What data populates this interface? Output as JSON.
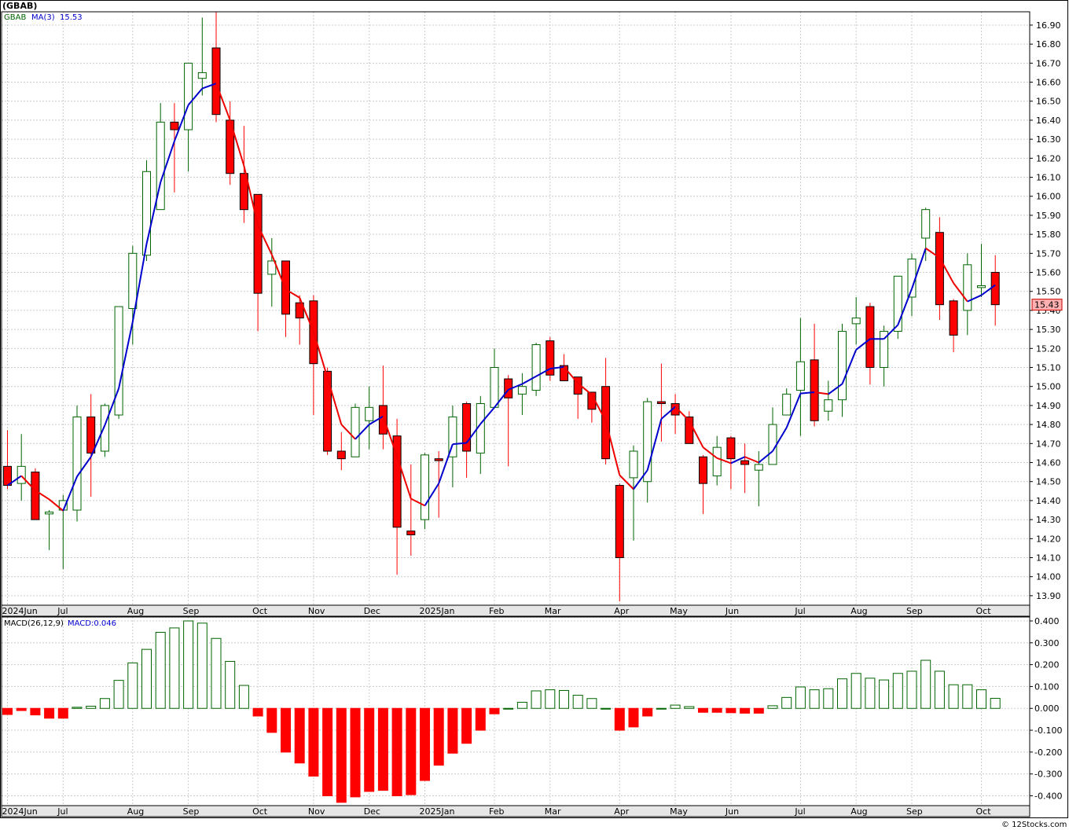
{
  "title": "(GBAB)",
  "watermark": "© 12Stocks.com",
  "price_legend": {
    "symbol": "GBAB",
    "ma_label": "MA(3)",
    "ma_value": "15.53"
  },
  "macd_legend": {
    "label": "MACD(26,12,9)",
    "value_label": "MACD:0.046"
  },
  "last_price_label": "15.43",
  "colors": {
    "up": "#006400",
    "down": "#ff0000",
    "ma_up": "#0000cc",
    "ma_down": "#ee0000",
    "grid": "#cccccc",
    "axis_strip": "#e6e6e6",
    "last_price_bg": "#ffb0b0"
  },
  "chart_data": [
    {
      "type": "candlestick",
      "title": "(GBAB)",
      "period": "weekly",
      "ylim": [
        13.85,
        16.97
      ],
      "y_ticks": [
        "13.90",
        "14.00",
        "14.10",
        "14.20",
        "14.30",
        "14.40",
        "14.50",
        "14.60",
        "14.70",
        "14.80",
        "14.90",
        "15.00",
        "15.10",
        "15.20",
        "15.30",
        "15.40",
        "15.50",
        "15.60",
        "15.70",
        "15.80",
        "15.90",
        "16.00",
        "16.10",
        "16.20",
        "16.30",
        "16.40",
        "16.50",
        "16.60",
        "16.70",
        "16.80",
        "16.90"
      ],
      "x_tick_labels": [
        {
          "label": "2024Jun",
          "bar": 0
        },
        {
          "label": "Jul",
          "bar": 4
        },
        {
          "label": "Aug",
          "bar": 9
        },
        {
          "label": "Sep",
          "bar": 13
        },
        {
          "label": "Oct",
          "bar": 18
        },
        {
          "label": "Nov",
          "bar": 22
        },
        {
          "label": "Dec",
          "bar": 26
        },
        {
          "label": "2025Jan",
          "bar": 30
        },
        {
          "label": "Feb",
          "bar": 35
        },
        {
          "label": "Mar",
          "bar": 39
        },
        {
          "label": "Apr",
          "bar": 44
        },
        {
          "label": "May",
          "bar": 48
        },
        {
          "label": "Jun",
          "bar": 52
        },
        {
          "label": "Jul",
          "bar": 57
        },
        {
          "label": "Aug",
          "bar": 61
        },
        {
          "label": "Sep",
          "bar": 65
        },
        {
          "label": "Oct",
          "bar": 70
        }
      ],
      "grid": true,
      "legend": "top-left",
      "ohlc": [
        [
          14.58,
          14.77,
          14.46,
          14.48
        ],
        [
          14.49,
          14.75,
          14.4,
          14.58
        ],
        [
          14.55,
          14.57,
          14.3,
          14.3
        ],
        [
          14.33,
          14.35,
          14.14,
          14.34
        ],
        [
          14.35,
          14.43,
          14.04,
          14.4
        ],
        [
          14.35,
          14.9,
          14.29,
          14.84
        ],
        [
          14.84,
          14.96,
          14.42,
          14.65
        ],
        [
          14.66,
          14.91,
          14.63,
          14.9
        ],
        [
          14.85,
          15.42,
          14.83,
          15.42
        ],
        [
          15.41,
          15.74,
          15.22,
          15.7
        ],
        [
          15.69,
          16.19,
          15.66,
          16.13
        ],
        [
          15.93,
          16.49,
          15.93,
          16.39
        ],
        [
          16.39,
          16.49,
          16.02,
          16.35
        ],
        [
          16.35,
          16.7,
          16.13,
          16.7
        ],
        [
          16.62,
          16.94,
          16.53,
          16.65
        ],
        [
          16.78,
          16.97,
          16.39,
          16.43
        ],
        [
          16.4,
          16.5,
          16.06,
          16.12
        ],
        [
          16.12,
          16.37,
          15.86,
          15.93
        ],
        [
          16.01,
          16.01,
          15.29,
          15.49
        ],
        [
          15.59,
          15.78,
          15.42,
          15.66
        ],
        [
          15.66,
          15.66,
          15.26,
          15.38
        ],
        [
          15.44,
          15.48,
          15.22,
          15.36
        ],
        [
          15.45,
          15.48,
          14.85,
          15.12
        ],
        [
          15.08,
          15.1,
          14.64,
          14.66
        ],
        [
          14.66,
          14.76,
          14.56,
          14.62
        ],
        [
          14.63,
          14.91,
          14.63,
          14.89
        ],
        [
          14.82,
          15.0,
          14.67,
          14.89
        ],
        [
          14.9,
          15.11,
          14.67,
          14.75
        ],
        [
          14.74,
          14.83,
          14.01,
          14.26
        ],
        [
          14.24,
          14.59,
          14.11,
          14.22
        ],
        [
          14.3,
          14.65,
          14.25,
          14.64
        ],
        [
          14.62,
          14.66,
          14.31,
          14.61
        ],
        [
          14.63,
          14.9,
          14.47,
          14.84
        ],
        [
          14.91,
          14.92,
          14.52,
          14.66
        ],
        [
          14.65,
          14.95,
          14.54,
          14.91
        ],
        [
          14.89,
          15.2,
          14.89,
          15.1
        ],
        [
          15.04,
          15.06,
          14.58,
          14.94
        ],
        [
          14.96,
          15.07,
          14.85,
          15.0
        ],
        [
          14.98,
          15.23,
          14.95,
          15.22
        ],
        [
          15.24,
          15.26,
          15.03,
          15.06
        ],
        [
          15.11,
          15.17,
          15.03,
          15.03
        ],
        [
          15.05,
          15.05,
          14.83,
          14.96
        ],
        [
          14.97,
          14.97,
          14.81,
          14.88
        ],
        [
          15.0,
          15.15,
          14.59,
          14.62
        ],
        [
          14.48,
          14.49,
          13.87,
          14.1
        ],
        [
          14.52,
          14.69,
          14.19,
          14.66
        ],
        [
          14.5,
          14.94,
          14.39,
          14.92
        ],
        [
          14.92,
          15.12,
          14.71,
          14.91
        ],
        [
          14.91,
          14.96,
          14.75,
          14.85
        ],
        [
          14.84,
          14.87,
          14.7,
          14.7
        ],
        [
          14.63,
          14.64,
          14.33,
          14.49
        ],
        [
          14.53,
          14.74,
          14.48,
          14.68
        ],
        [
          14.73,
          14.74,
          14.46,
          14.62
        ],
        [
          14.61,
          14.7,
          14.44,
          14.59
        ],
        [
          14.56,
          14.66,
          14.37,
          14.59
        ],
        [
          14.59,
          14.89,
          14.59,
          14.8
        ],
        [
          14.85,
          14.99,
          14.86,
          14.96
        ],
        [
          14.98,
          15.36,
          14.74,
          15.13
        ],
        [
          15.14,
          15.33,
          14.79,
          14.82
        ],
        [
          14.87,
          15.03,
          14.82,
          14.93
        ],
        [
          14.93,
          15.33,
          14.84,
          15.29
        ],
        [
          15.33,
          15.47,
          15.22,
          15.36
        ],
        [
          15.42,
          15.44,
          15.01,
          15.1
        ],
        [
          15.1,
          15.32,
          15.0,
          15.29
        ],
        [
          15.29,
          15.58,
          15.25,
          15.58
        ],
        [
          15.47,
          15.7,
          15.37,
          15.67
        ],
        [
          15.78,
          15.94,
          15.66,
          15.93
        ],
        [
          15.81,
          15.89,
          15.35,
          15.43
        ],
        [
          15.45,
          15.46,
          15.18,
          15.27
        ],
        [
          15.4,
          15.7,
          15.27,
          15.64
        ],
        [
          15.52,
          15.75,
          15.47,
          15.53
        ],
        [
          15.6,
          15.69,
          15.32,
          15.43
        ]
      ]
    },
    {
      "type": "bar",
      "title": "MACD(26,12,9)",
      "ylim": [
        -0.445,
        0.418
      ],
      "y_ticks": [
        "-0.400",
        "-0.300",
        "-0.200",
        "-0.100",
        "0.000",
        "0.100",
        "0.200",
        "0.300",
        "0.400"
      ],
      "values": [
        -0.028,
        -0.01,
        -0.03,
        -0.045,
        -0.045,
        0.005,
        0.01,
        0.045,
        0.128,
        0.208,
        0.27,
        0.348,
        0.368,
        0.4,
        0.39,
        0.32,
        0.215,
        0.105,
        -0.035,
        -0.11,
        -0.2,
        -0.25,
        -0.31,
        -0.4,
        -0.43,
        -0.405,
        -0.38,
        -0.375,
        -0.4,
        -0.395,
        -0.33,
        -0.26,
        -0.205,
        -0.16,
        -0.1,
        -0.025,
        0.0,
        0.028,
        0.08,
        0.085,
        0.082,
        0.06,
        0.045,
        0.0,
        -0.1,
        -0.085,
        -0.035,
        0.0,
        0.015,
        0.008,
        -0.018,
        -0.018,
        -0.02,
        -0.022,
        -0.022,
        0.012,
        0.05,
        0.098,
        0.085,
        0.09,
        0.135,
        0.16,
        0.138,
        0.13,
        0.16,
        0.17,
        0.22,
        0.17,
        0.108,
        0.108,
        0.085,
        0.046
      ]
    }
  ]
}
